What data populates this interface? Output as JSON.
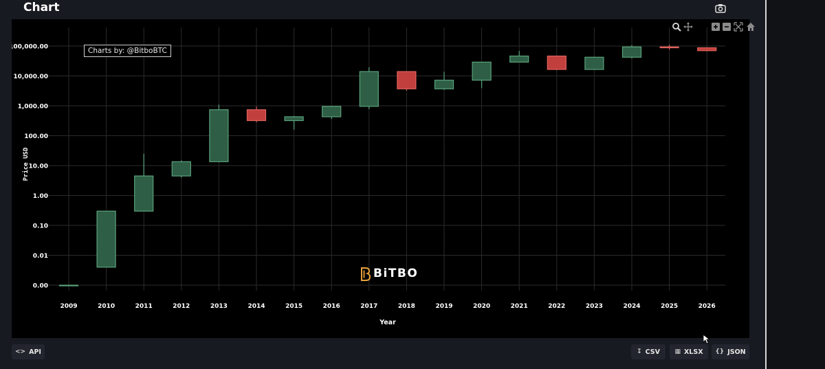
{
  "panel": {
    "title": "Chart"
  },
  "icons": {
    "camera": "camera-icon",
    "zoom": "zoom-icon",
    "pan": "pan-icon",
    "zoom_in": "zoom-in-icon",
    "zoom_out": "zoom-out-icon",
    "autoscale": "autoscale-icon",
    "reset": "home-icon"
  },
  "overlay": {
    "attribution": "Charts by: @BitboBTC",
    "brand": "BiTBO"
  },
  "footer": {
    "api": "API",
    "csv": "CSV",
    "xlsx": "XLSX",
    "json": "JSON"
  },
  "colors": {
    "up_fill": "#2e5e45",
    "up_line": "#5aa37c",
    "down_fill": "#c1403d",
    "down_line": "#e0625d",
    "grid": "#2b2b2b",
    "brand_accent": "#e8a33a"
  },
  "chart_data": {
    "type": "candlestick",
    "xlabel": "Year",
    "ylabel": "Price USD",
    "y_scale": "log",
    "ylim": [
      0.0005,
      200000
    ],
    "y_ticks": [
      {
        "value": 0.001,
        "label": "0.00"
      },
      {
        "value": 0.01,
        "label": "0.01"
      },
      {
        "value": 0.1,
        "label": "0.10"
      },
      {
        "value": 1,
        "label": "1.00"
      },
      {
        "value": 10,
        "label": "10.00"
      },
      {
        "value": 100,
        "label": "100.00"
      },
      {
        "value": 1000,
        "label": "1,000.00"
      },
      {
        "value": 10000,
        "label": "10,000.00"
      },
      {
        "value": 100000,
        "label": "100,000.00"
      }
    ],
    "categories": [
      "2009",
      "2010",
      "2011",
      "2012",
      "2013",
      "2014",
      "2015",
      "2016",
      "2017",
      "2018",
      "2019",
      "2020",
      "2021",
      "2022",
      "2023",
      "2024",
      "2025",
      "2026"
    ],
    "candles": [
      {
        "x": "2009",
        "open": 0.001,
        "high": 0.001,
        "low": 0.001,
        "close": 0.001
      },
      {
        "x": "2010",
        "open": 0.004,
        "high": 0.3,
        "low": 0.004,
        "close": 0.3
      },
      {
        "x": "2011",
        "open": 0.3,
        "high": 25,
        "low": 0.3,
        "close": 4.5
      },
      {
        "x": "2012",
        "open": 4.5,
        "high": 15,
        "low": 4,
        "close": 13.5
      },
      {
        "x": "2013",
        "open": 13.5,
        "high": 1100,
        "low": 13,
        "close": 740
      },
      {
        "x": "2014",
        "open": 740,
        "high": 950,
        "low": 280,
        "close": 320
      },
      {
        "x": "2015",
        "open": 320,
        "high": 460,
        "low": 160,
        "close": 430
      },
      {
        "x": "2016",
        "open": 430,
        "high": 990,
        "low": 360,
        "close": 960
      },
      {
        "x": "2017",
        "open": 960,
        "high": 19500,
        "low": 780,
        "close": 14000
      },
      {
        "x": "2018",
        "open": 14000,
        "high": 14000,
        "low": 3200,
        "close": 3700
      },
      {
        "x": "2019",
        "open": 3700,
        "high": 13800,
        "low": 3400,
        "close": 7200
      },
      {
        "x": "2020",
        "open": 7200,
        "high": 29000,
        "low": 3900,
        "close": 29000
      },
      {
        "x": "2021",
        "open": 29000,
        "high": 69000,
        "low": 28800,
        "close": 46300
      },
      {
        "x": "2022",
        "open": 46300,
        "high": 47000,
        "low": 15500,
        "close": 16500
      },
      {
        "x": "2023",
        "open": 16500,
        "high": 44000,
        "low": 16500,
        "close": 42300
      },
      {
        "x": "2024",
        "open": 42300,
        "high": 108000,
        "low": 38500,
        "close": 93500
      },
      {
        "x": "2025",
        "open": 93500,
        "high": 110000,
        "low": 76000,
        "close": 87500
      },
      {
        "x": "2026",
        "open": 87500,
        "high": 90000,
        "low": 66000,
        "close": 70000
      }
    ]
  }
}
